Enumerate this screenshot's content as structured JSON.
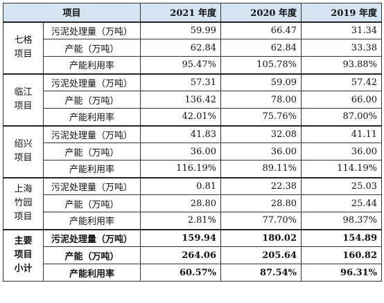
{
  "table": {
    "header": {
      "item": "项目",
      "years": [
        "2021 年度",
        "2020 年度",
        "2019 年度"
      ]
    },
    "groups": [
      {
        "name_lines": [
          "七格",
          "项目"
        ],
        "rows": [
          {
            "label": "污泥处理量（万吨）",
            "values": [
              "59.99",
              "66.47",
              "31.34"
            ]
          },
          {
            "label": "产能（万吨）",
            "values": [
              "62.84",
              "62.84",
              "33.38"
            ]
          },
          {
            "label": "产能利用率",
            "values": [
              "95.47%",
              "105.78%",
              "93.88%"
            ]
          }
        ]
      },
      {
        "name_lines": [
          "临江",
          "项目"
        ],
        "rows": [
          {
            "label": "污泥处理量（万吨）",
            "values": [
              "57.31",
              "59.09",
              "57.42"
            ]
          },
          {
            "label": "产能（万吨）",
            "values": [
              "136.42",
              "78.00",
              "66.00"
            ]
          },
          {
            "label": "产能利用率",
            "values": [
              "42.01%",
              "75.76%",
              "87.00%"
            ]
          }
        ]
      },
      {
        "name_lines": [
          "绍兴",
          "项目"
        ],
        "rows": [
          {
            "label": "污泥处理量（万吨）",
            "values": [
              "41.83",
              "32.08",
              "41.11"
            ]
          },
          {
            "label": "产能（万吨）",
            "values": [
              "36.00",
              "36.00",
              "36.00"
            ]
          },
          {
            "label": "产能利用率",
            "values": [
              "116.19%",
              "89.11%",
              "114.19%"
            ]
          }
        ]
      },
      {
        "name_lines": [
          "上海",
          "竹园",
          "项目"
        ],
        "rows": [
          {
            "label": "污泥处理量（万吨）",
            "values": [
              "0.81",
              "22.38",
              "25.03"
            ]
          },
          {
            "label": "产能（万吨）",
            "values": [
              "28.80",
              "28.80",
              "25.44"
            ]
          },
          {
            "label": "产能利用率",
            "values": [
              "2.81%",
              "77.70%",
              "98.37%"
            ]
          }
        ]
      },
      {
        "name_lines": [
          "主要",
          "项目",
          "小计"
        ],
        "rows": [
          {
            "label": "污泥处理量（万吨）",
            "values": [
              "159.94",
              "180.02",
              "154.89"
            ]
          },
          {
            "label": "产能（万吨）",
            "values": [
              "264.06",
              "205.64",
              "160.82"
            ]
          },
          {
            "label": "产能利用率",
            "values": [
              "60.57%",
              "87.54%",
              "96.31%"
            ]
          }
        ]
      }
    ]
  },
  "colors": {
    "header_bg": "#d5e5f3",
    "border": "#333333"
  }
}
